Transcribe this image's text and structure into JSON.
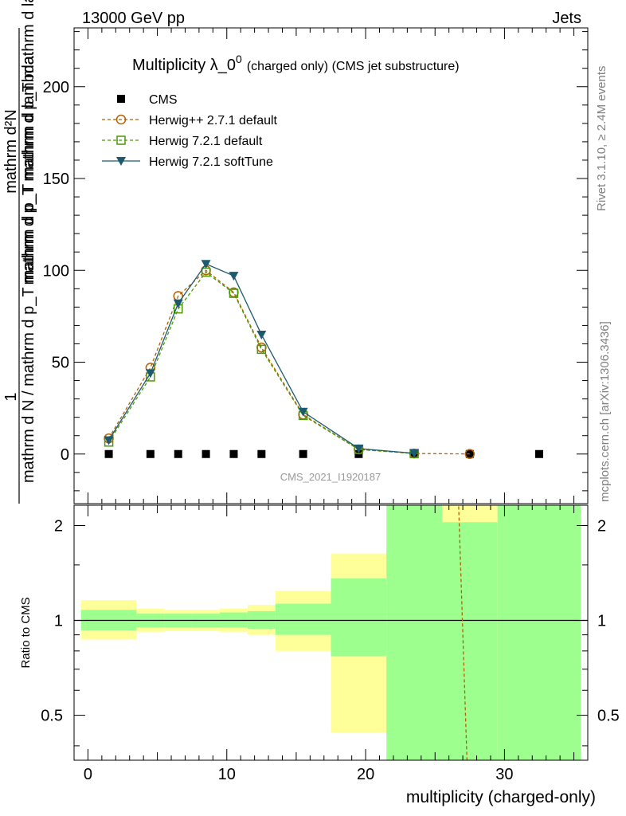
{
  "header": {
    "left": "13000 GeV pp",
    "right": "Jets"
  },
  "side_text": {
    "rivet": "Rivet 3.1.10, ≥ 2.4M events",
    "mcplots": "mcplots.cern.ch [arXiv:1306.3436]"
  },
  "chart_data": [
    {
      "type": "line",
      "title_main": "Multiplicity λ_0",
      "title_sup": "0",
      "title_suffix": "(charged only) (CMS jet substructure)",
      "watermark": "CMS_2021_I1920187",
      "ylabel": {
        "numerator": "1",
        "denominator": "mathrm d N / mathrm d p_T mathrm d p_T mathrm d lambda",
        "rhs_top": "mathrm d²N",
        "rhs_bottom": "mathrm d p_T mathrm d p_T mathrm d lambda"
      },
      "xlabel": "multiplicity (charged-only)",
      "xlim": [
        -1,
        36
      ],
      "ylim": [
        -27,
        232
      ],
      "yticks": [
        0,
        50,
        100,
        150,
        200
      ],
      "ytick_labels": [
        "0",
        "50",
        "100",
        "150",
        "200"
      ],
      "legend_position": "top-left",
      "series": [
        {
          "name": "CMS",
          "color": "#000000",
          "marker": "square-filled",
          "x": [
            1.5,
            4.5,
            6.5,
            8.5,
            10.5,
            12.5,
            15.5,
            19.5,
            23.5,
            27.5,
            32.5
          ],
          "y": [
            0,
            0,
            0,
            0,
            0,
            0,
            0,
            0,
            0,
            0,
            0
          ]
        },
        {
          "name": "Herwig++ 2.7.1 default",
          "color": "#b45f04",
          "marker": "circle-open",
          "dashed": true,
          "x": [
            1.5,
            4.5,
            6.5,
            8.5,
            10.5,
            12.5,
            15.5,
            19.5,
            23.5,
            27.5
          ],
          "y": [
            8.5,
            47,
            86,
            100,
            88,
            58,
            21.5,
            2.5,
            0.3,
            0.05
          ]
        },
        {
          "name": "Herwig 7.2.1 default",
          "color": "#4a9a04",
          "marker": "square-open",
          "dashed": true,
          "x": [
            1.5,
            4.5,
            6.5,
            8.5,
            10.5,
            12.5,
            15.5,
            19.5,
            23.5
          ],
          "y": [
            6.5,
            42,
            79,
            99,
            87.5,
            57,
            21,
            2.5,
            0.3
          ]
        },
        {
          "name": "Herwig 7.2.1 softTune",
          "color": "#1e5a6e",
          "marker": "triangle-down-filled",
          "dashed": false,
          "x": [
            1.5,
            4.5,
            6.5,
            8.5,
            10.5,
            12.5,
            15.5,
            19.5,
            23.5
          ],
          "y": [
            7.5,
            44,
            82,
            103.5,
            97,
            65,
            23,
            3,
            0.4
          ]
        }
      ]
    },
    {
      "type": "area",
      "ylabel": "Ratio to CMS",
      "log_y": true,
      "ylim": [
        0.36,
        2.32
      ],
      "yticks": [
        0.5,
        1,
        2
      ],
      "ytick_labels": [
        "0.5",
        "1",
        "2"
      ],
      "xlim": [
        -1,
        36
      ],
      "xticks": [
        0,
        10,
        20,
        30
      ],
      "xtick_labels": [
        "0",
        "10",
        "20",
        "30"
      ],
      "reference_line": 1,
      "colors": {
        "stat_band": "#9cff8e",
        "syst_band": "#ffff99"
      },
      "bins": [
        {
          "x": [
            -0.5,
            3.5
          ],
          "yellow": [
            0.87,
            1.16
          ],
          "green": [
            0.93,
            1.08
          ]
        },
        {
          "x": [
            3.5,
            5.5
          ],
          "yellow": [
            0.92,
            1.09
          ],
          "green": [
            0.95,
            1.05
          ]
        },
        {
          "x": [
            5.5,
            7.5
          ],
          "yellow": [
            0.925,
            1.08
          ],
          "green": [
            0.95,
            1.05
          ]
        },
        {
          "x": [
            7.5,
            9.5
          ],
          "yellow": [
            0.925,
            1.08
          ],
          "green": [
            0.95,
            1.05
          ]
        },
        {
          "x": [
            9.5,
            11.5
          ],
          "yellow": [
            0.92,
            1.09
          ],
          "green": [
            0.95,
            1.06
          ]
        },
        {
          "x": [
            11.5,
            13.5
          ],
          "yellow": [
            0.9,
            1.12
          ],
          "green": [
            0.94,
            1.07
          ]
        },
        {
          "x": [
            13.5,
            17.5
          ],
          "yellow": [
            0.8,
            1.24
          ],
          "green": [
            0.9,
            1.13
          ]
        },
        {
          "x": [
            17.5,
            21.5
          ],
          "yellow": [
            0.44,
            1.63
          ],
          "green": [
            0.77,
            1.36
          ]
        },
        {
          "x": [
            21.5,
            25.5
          ],
          "yellow": [
            0.36,
            2.32
          ],
          "green": [
            0.36,
            2.32
          ]
        },
        {
          "x": [
            25.5,
            29.5
          ],
          "yellow": [
            2.05,
            2.32
          ],
          "green": [
            0.36,
            2.05
          ]
        },
        {
          "x": [
            29.5,
            35.5
          ],
          "yellow": [
            0.36,
            2.32
          ],
          "green": [
            0.36,
            2.32
          ]
        }
      ],
      "series": [
        {
          "color": "#b45f04",
          "dashed": true,
          "x": [
            26.7,
            27.3
          ],
          "y": [
            2.3,
            0.36
          ]
        }
      ]
    }
  ]
}
